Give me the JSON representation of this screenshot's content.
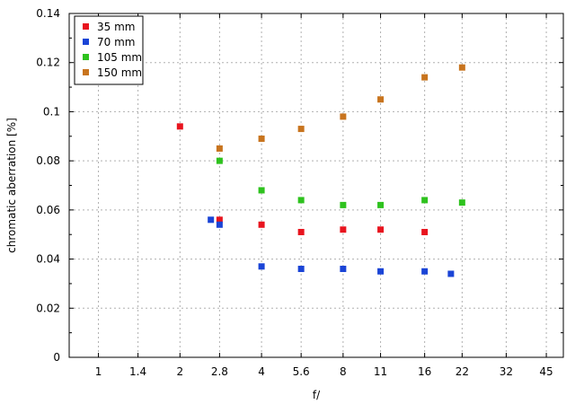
{
  "chart_data": {
    "type": "scatter",
    "xlabel": "f/",
    "ylabel": "chromatic  aberration [%]",
    "x_ticks": [
      "1",
      "1.4",
      "2",
      "2.8",
      "4",
      "5.6",
      "8",
      "11",
      "16",
      "22",
      "32",
      "45"
    ],
    "x_scale": "log (f-number stops)",
    "xlim": [
      0.78,
      52
    ],
    "ylim": [
      0,
      0.14
    ],
    "y_ticks": [
      "0",
      "0.02",
      "0.04",
      "0.06",
      "0.08",
      "0.1",
      "0.12",
      "0.14"
    ],
    "grid": true,
    "legend_position": "top-left",
    "series": [
      {
        "name": "35 mm",
        "color": "#e8141e",
        "points": [
          {
            "x": 2,
            "y": 0.094
          },
          {
            "x": 2.8,
            "y": 0.056
          },
          {
            "x": 4,
            "y": 0.054
          },
          {
            "x": 5.6,
            "y": 0.051
          },
          {
            "x": 8,
            "y": 0.052
          },
          {
            "x": 11,
            "y": 0.052
          },
          {
            "x": 16,
            "y": 0.051
          }
        ]
      },
      {
        "name": "70 mm",
        "color": "#1a44d6",
        "points": [
          {
            "x": 2.6,
            "y": 0.056
          },
          {
            "x": 2.8,
            "y": 0.054
          },
          {
            "x": 4,
            "y": 0.037
          },
          {
            "x": 5.6,
            "y": 0.036
          },
          {
            "x": 8,
            "y": 0.036
          },
          {
            "x": 11,
            "y": 0.035
          },
          {
            "x": 16,
            "y": 0.035
          },
          {
            "x": 20,
            "y": 0.034
          }
        ]
      },
      {
        "name": "105 mm",
        "color": "#2ec21e",
        "points": [
          {
            "x": 2.8,
            "y": 0.08
          },
          {
            "x": 4,
            "y": 0.068
          },
          {
            "x": 5.6,
            "y": 0.064
          },
          {
            "x": 8,
            "y": 0.062
          },
          {
            "x": 11,
            "y": 0.062
          },
          {
            "x": 16,
            "y": 0.064
          },
          {
            "x": 22,
            "y": 0.063
          }
        ]
      },
      {
        "name": "150 mm",
        "color": "#c8741e",
        "points": [
          {
            "x": 2.8,
            "y": 0.085
          },
          {
            "x": 4,
            "y": 0.089
          },
          {
            "x": 5.6,
            "y": 0.093
          },
          {
            "x": 8,
            "y": 0.098
          },
          {
            "x": 11,
            "y": 0.105
          },
          {
            "x": 16,
            "y": 0.114
          },
          {
            "x": 22,
            "y": 0.118
          }
        ]
      }
    ]
  }
}
